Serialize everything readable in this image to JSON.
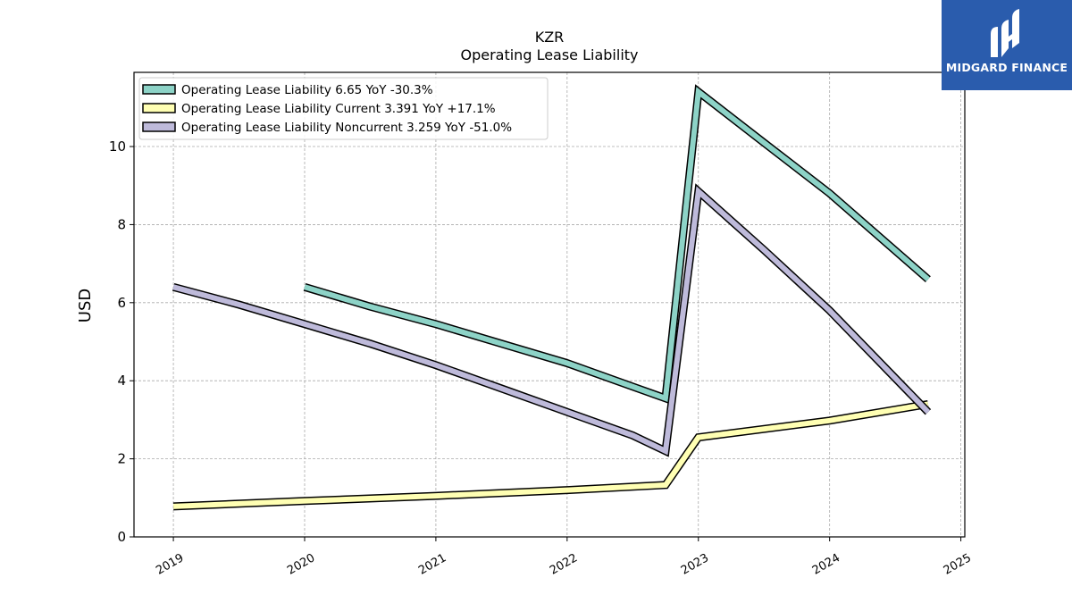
{
  "chart_data": {
    "type": "line",
    "title": "KZR",
    "subtitle": "Operating Lease Liability",
    "ylabel": "USD",
    "xlabel": "",
    "ylim": [
      0,
      11.9
    ],
    "xlim": [
      2018.7,
      2025.03
    ],
    "yticks": [
      0,
      2,
      4,
      6,
      8,
      10
    ],
    "xticks": [
      2019,
      2020,
      2021,
      2022,
      2023,
      2024,
      2025
    ],
    "xtick_labels": [
      "2019",
      "2020",
      "2021",
      "2022",
      "2023",
      "2024",
      "2025"
    ],
    "grid": true,
    "legend_position": "top-left",
    "series": [
      {
        "name": "Operating Lease Liability",
        "legend": "Operating Lease Liability  6.65 YoY -30.3%",
        "color": "#8dd3c7",
        "x": [
          2020.0,
          2020.5,
          2021.0,
          2021.5,
          2022.0,
          2022.5,
          2022.75,
          2023.0,
          2023.5,
          2024.0,
          2024.75
        ],
        "y": [
          6.4,
          5.9,
          5.45,
          4.95,
          4.45,
          3.85,
          3.55,
          11.4,
          10.1,
          8.8,
          6.6
        ]
      },
      {
        "name": "Operating Lease Liability Current",
        "legend": "Operating Lease Liability Current  3.391 YoY +17.1%",
        "color": "#ffffb3",
        "x": [
          2019.0,
          2020.0,
          2021.0,
          2022.0,
          2022.75,
          2023.0,
          2024.0,
          2024.75
        ],
        "y": [
          0.78,
          0.92,
          1.05,
          1.2,
          1.33,
          2.55,
          2.98,
          3.4
        ]
      },
      {
        "name": "Operating Lease Liability Noncurrent",
        "legend": "Operating Lease Liability Noncurrent  3.259 YoY -51.0%",
        "color": "#bebada",
        "x": [
          2019.0,
          2019.5,
          2020.0,
          2020.5,
          2021.0,
          2021.5,
          2022.0,
          2022.5,
          2022.75,
          2023.0,
          2023.5,
          2024.0,
          2024.75
        ],
        "y": [
          6.4,
          5.95,
          5.45,
          4.95,
          4.4,
          3.8,
          3.2,
          2.6,
          2.2,
          8.85,
          7.35,
          5.8,
          3.2
        ]
      }
    ]
  },
  "logo": {
    "text": "MIDGARD FINANCE",
    "color": "#2a5cad"
  }
}
